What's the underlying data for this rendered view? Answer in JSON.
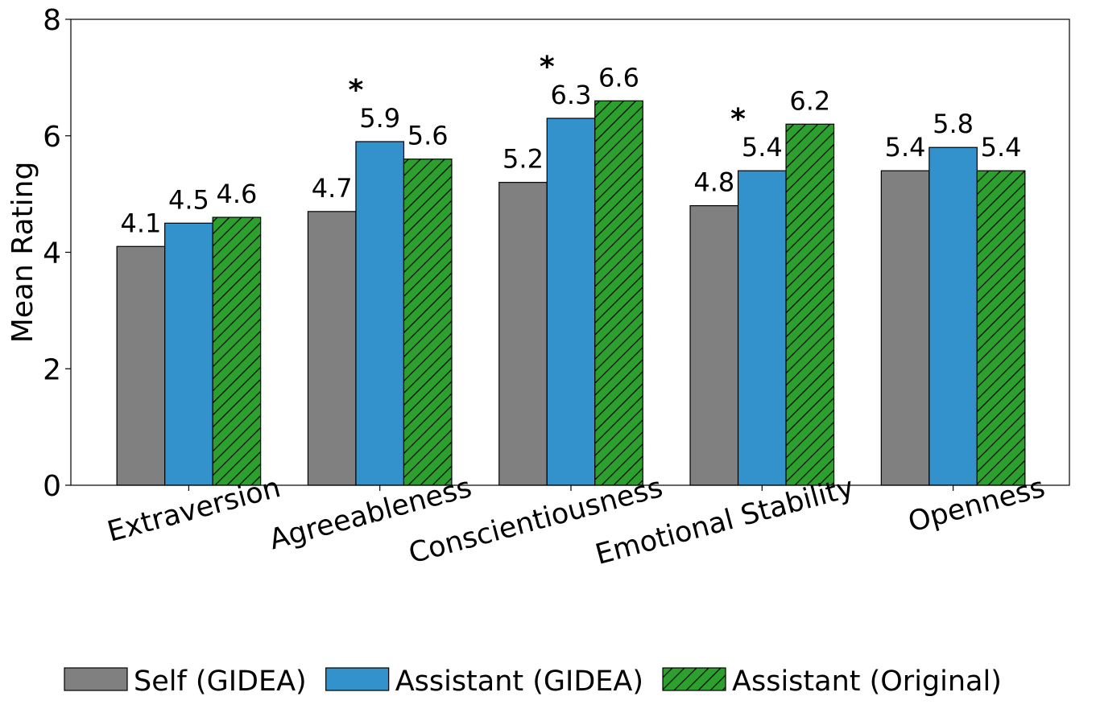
{
  "chart_data": {
    "type": "bar",
    "title": "",
    "xlabel": "",
    "ylabel": "Mean Rating",
    "ylim": [
      0,
      8
    ],
    "yticks": [
      0,
      2,
      4,
      6,
      8
    ],
    "categories": [
      "Extraversion",
      "Agreeableness",
      "Conscientiousness",
      "Emotional Stability",
      "Openness"
    ],
    "series": [
      {
        "name": "Self (GIDEA)",
        "values": [
          4.1,
          4.7,
          5.2,
          4.8,
          5.4
        ],
        "color": "#808080",
        "hatch": false
      },
      {
        "name": "Assistant (GIDEA)",
        "values": [
          4.5,
          5.9,
          6.3,
          5.4,
          5.8
        ],
        "color": "#3391cc",
        "hatch": false
      },
      {
        "name": "Assistant (Original)",
        "values": [
          4.6,
          5.6,
          6.6,
          6.2,
          5.4
        ],
        "color": "#2ca02c",
        "hatch": true
      }
    ],
    "significance": [
      {
        "category": "Agreeableness",
        "series": "Assistant (GIDEA)",
        "marker": "*"
      },
      {
        "category": "Conscientiousness",
        "series": "Assistant (GIDEA)",
        "marker": "*"
      },
      {
        "category": "Emotional Stability",
        "series": "Assistant (GIDEA)",
        "marker": "*"
      }
    ],
    "legend": "bottom-center",
    "grid": false
  }
}
